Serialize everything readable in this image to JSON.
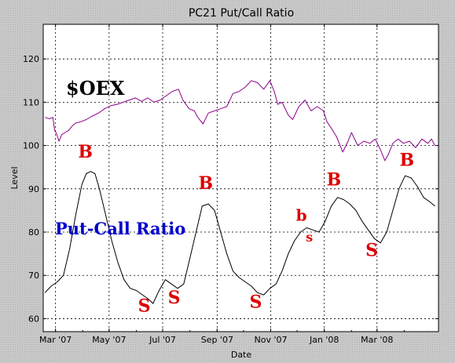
{
  "chart_data": {
    "type": "line",
    "title": "PC21 Put/Call Ratio",
    "xlabel": "Date",
    "ylabel": "Level",
    "xlim": [
      "2007-02-15",
      "2008-05-10"
    ],
    "ylim": [
      57,
      128
    ],
    "grid": true,
    "yticks": [
      60,
      70,
      80,
      90,
      100,
      110,
      120
    ],
    "xticks": [
      {
        "date": "2007-03-01",
        "label": "Mar '07"
      },
      {
        "date": "2007-05-01",
        "label": "May '07"
      },
      {
        "date": "2007-07-01",
        "label": "Jul '07"
      },
      {
        "date": "2007-09-01",
        "label": "Sep '07"
      },
      {
        "date": "2007-11-01",
        "label": "Nov '07"
      },
      {
        "date": "2008-01-01",
        "label": "Jan '08"
      },
      {
        "date": "2008-03-01",
        "label": "Mar '08"
      }
    ],
    "series": [
      {
        "name": "$OEX",
        "color": "#8b008b",
        "label_color": "#000000",
        "points": [
          [
            "2007-02-17",
            106.5
          ],
          [
            "2007-02-22",
            106.2
          ],
          [
            "2007-02-26",
            106.5
          ],
          [
            "2007-02-28",
            103.5
          ],
          [
            "2007-03-02",
            102.8
          ],
          [
            "2007-03-05",
            101.0
          ],
          [
            "2007-03-08",
            102.5
          ],
          [
            "2007-03-12",
            103.0
          ],
          [
            "2007-03-16",
            103.5
          ],
          [
            "2007-03-20",
            104.5
          ],
          [
            "2007-03-24",
            105.2
          ],
          [
            "2007-03-30",
            105.5
          ],
          [
            "2007-04-05",
            106.0
          ],
          [
            "2007-04-12",
            106.8
          ],
          [
            "2007-04-19",
            107.5
          ],
          [
            "2007-04-26",
            108.5
          ],
          [
            "2007-05-03",
            109.2
          ],
          [
            "2007-05-10",
            109.5
          ],
          [
            "2007-05-17",
            110.0
          ],
          [
            "2007-05-24",
            110.5
          ],
          [
            "2007-05-31",
            111.0
          ],
          [
            "2007-06-07",
            110.2
          ],
          [
            "2007-06-14",
            111.0
          ],
          [
            "2007-06-21",
            110.0
          ],
          [
            "2007-06-28",
            110.5
          ],
          [
            "2007-07-05",
            111.5
          ],
          [
            "2007-07-12",
            112.5
          ],
          [
            "2007-07-19",
            113.0
          ],
          [
            "2007-07-24",
            110.5
          ],
          [
            "2007-07-31",
            108.5
          ],
          [
            "2007-08-06",
            108.0
          ],
          [
            "2007-08-10",
            106.5
          ],
          [
            "2007-08-16",
            105.0
          ],
          [
            "2007-08-22",
            107.5
          ],
          [
            "2007-08-29",
            108.0
          ],
          [
            "2007-09-05",
            108.5
          ],
          [
            "2007-09-12",
            109.0
          ],
          [
            "2007-09-19",
            112.0
          ],
          [
            "2007-09-26",
            112.5
          ],
          [
            "2007-10-03",
            113.5
          ],
          [
            "2007-10-10",
            115.0
          ],
          [
            "2007-10-17",
            114.5
          ],
          [
            "2007-10-24",
            113.0
          ],
          [
            "2007-10-31",
            115.0
          ],
          [
            "2007-11-05",
            112.5
          ],
          [
            "2007-11-09",
            109.5
          ],
          [
            "2007-11-14",
            110.0
          ],
          [
            "2007-11-21",
            107.0
          ],
          [
            "2007-11-26",
            106.0
          ],
          [
            "2007-12-03",
            109.0
          ],
          [
            "2007-12-10",
            110.5
          ],
          [
            "2007-12-17",
            108.0
          ],
          [
            "2007-12-24",
            109.0
          ],
          [
            "2007-12-31",
            108.0
          ],
          [
            "2008-01-04",
            105.5
          ],
          [
            "2008-01-09",
            104.0
          ],
          [
            "2008-01-15",
            102.0
          ],
          [
            "2008-01-22",
            98.5
          ],
          [
            "2008-01-28",
            101.0
          ],
          [
            "2008-02-01",
            103.0
          ],
          [
            "2008-02-08",
            100.0
          ],
          [
            "2008-02-15",
            101.0
          ],
          [
            "2008-02-22",
            100.5
          ],
          [
            "2008-02-28",
            101.5
          ],
          [
            "2008-03-05",
            99.0
          ],
          [
            "2008-03-10",
            96.5
          ],
          [
            "2008-03-14",
            98.0
          ],
          [
            "2008-03-19",
            100.5
          ],
          [
            "2008-03-25",
            101.5
          ],
          [
            "2008-03-31",
            100.5
          ],
          [
            "2008-04-07",
            101.0
          ],
          [
            "2008-04-14",
            99.5
          ],
          [
            "2008-04-21",
            101.5
          ],
          [
            "2008-04-28",
            100.5
          ],
          [
            "2008-05-02",
            101.5
          ],
          [
            "2008-05-06",
            100.0
          ]
        ]
      },
      {
        "name": "Put-Call Ratio",
        "color": "#000000",
        "label_color": "#0000cc",
        "points": [
          [
            "2007-02-17",
            66.0
          ],
          [
            "2007-02-24",
            67.5
          ],
          [
            "2007-03-03",
            68.5
          ],
          [
            "2007-03-10",
            70.0
          ],
          [
            "2007-03-17",
            76.0
          ],
          [
            "2007-03-24",
            84.0
          ],
          [
            "2007-03-31",
            91.0
          ],
          [
            "2007-04-05",
            93.5
          ],
          [
            "2007-04-10",
            94.0
          ],
          [
            "2007-04-15",
            93.5
          ],
          [
            "2007-04-20",
            90.0
          ],
          [
            "2007-04-27",
            84.0
          ],
          [
            "2007-05-04",
            78.0
          ],
          [
            "2007-05-11",
            73.0
          ],
          [
            "2007-05-18",
            69.0
          ],
          [
            "2007-05-25",
            67.0
          ],
          [
            "2007-06-01",
            66.5
          ],
          [
            "2007-06-08",
            65.5
          ],
          [
            "2007-06-15",
            64.5
          ],
          [
            "2007-06-20",
            63.5
          ],
          [
            "2007-06-27",
            66.5
          ],
          [
            "2007-07-04",
            69.0
          ],
          [
            "2007-07-11",
            68.0
          ],
          [
            "2007-07-18",
            67.0
          ],
          [
            "2007-07-25",
            68.0
          ],
          [
            "2007-08-01",
            74.0
          ],
          [
            "2007-08-08",
            80.0
          ],
          [
            "2007-08-15",
            86.0
          ],
          [
            "2007-08-22",
            86.5
          ],
          [
            "2007-08-29",
            85.0
          ],
          [
            "2007-09-05",
            80.0
          ],
          [
            "2007-09-12",
            75.0
          ],
          [
            "2007-09-19",
            71.0
          ],
          [
            "2007-09-26",
            69.5
          ],
          [
            "2007-10-03",
            68.5
          ],
          [
            "2007-10-10",
            67.5
          ],
          [
            "2007-10-17",
            66.0
          ],
          [
            "2007-10-24",
            65.5
          ],
          [
            "2007-10-31",
            67.0
          ],
          [
            "2007-11-07",
            68.0
          ],
          [
            "2007-11-14",
            71.0
          ],
          [
            "2007-11-21",
            75.0
          ],
          [
            "2007-11-28",
            78.0
          ],
          [
            "2007-12-05",
            80.0
          ],
          [
            "2007-12-12",
            81.0
          ],
          [
            "2007-12-19",
            80.5
          ],
          [
            "2007-12-26",
            80.0
          ],
          [
            "2008-01-02",
            82.5
          ],
          [
            "2008-01-09",
            86.0
          ],
          [
            "2008-01-16",
            88.0
          ],
          [
            "2008-01-23",
            87.5
          ],
          [
            "2008-01-30",
            86.5
          ],
          [
            "2008-02-06",
            85.0
          ],
          [
            "2008-02-13",
            82.5
          ],
          [
            "2008-02-20",
            80.5
          ],
          [
            "2008-02-27",
            78.5
          ],
          [
            "2008-03-05",
            77.5
          ],
          [
            "2008-03-12",
            80.0
          ],
          [
            "2008-03-19",
            85.0
          ],
          [
            "2008-03-26",
            90.0
          ],
          [
            "2008-04-02",
            93.0
          ],
          [
            "2008-04-09",
            92.5
          ],
          [
            "2008-04-16",
            90.5
          ],
          [
            "2008-04-23",
            88.0
          ],
          [
            "2008-04-30",
            87.0
          ],
          [
            "2008-05-06",
            86.0
          ]
        ]
      }
    ],
    "annotations": [
      {
        "text": "B",
        "date": "2007-04-04",
        "value": 97.2,
        "color": "#dd0000",
        "size": "large"
      },
      {
        "text": "S",
        "date": "2007-06-10",
        "value": 61.6,
        "color": "#dd0000",
        "size": "large"
      },
      {
        "text": "S",
        "date": "2007-07-14",
        "value": 63.5,
        "color": "#dd0000",
        "size": "large"
      },
      {
        "text": "B",
        "date": "2007-08-19",
        "value": 90.0,
        "color": "#dd0000",
        "size": "large"
      },
      {
        "text": "S",
        "date": "2007-10-15",
        "value": 62.5,
        "color": "#dd0000",
        "size": "large"
      },
      {
        "text": "b",
        "date": "2007-12-06",
        "value": 82.6,
        "color": "#dd0000",
        "size": "medium"
      },
      {
        "text": "s",
        "date": "2007-12-15",
        "value": 77.8,
        "color": "#dd0000",
        "size": "small"
      },
      {
        "text": "B",
        "date": "2008-01-12",
        "value": 90.8,
        "color": "#dd0000",
        "size": "large"
      },
      {
        "text": "S",
        "date": "2008-02-24",
        "value": 74.5,
        "color": "#dd0000",
        "size": "large"
      },
      {
        "text": "B",
        "date": "2008-04-04",
        "value": 95.3,
        "color": "#dd0000",
        "size": "large"
      }
    ]
  }
}
